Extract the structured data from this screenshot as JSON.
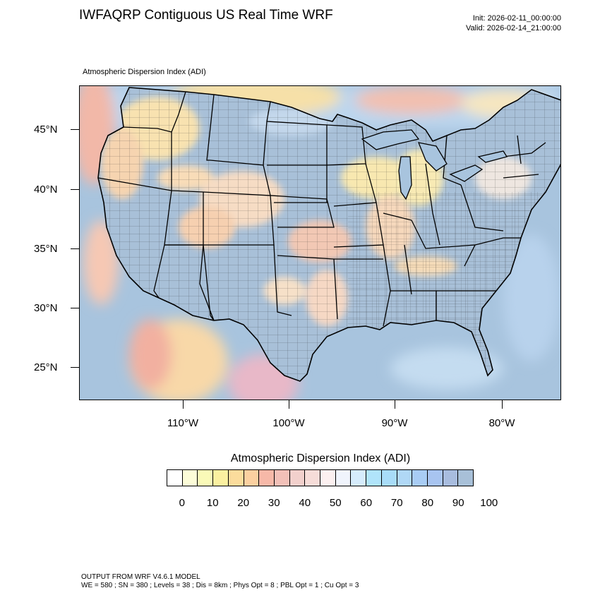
{
  "header": {
    "title": "IWFAQRP Contiguous US Real Time WRF",
    "init": "Init: 2026-02-11_00:00:00",
    "valid": "Valid: 2026-02-14_21:00:00"
  },
  "map": {
    "subtitle": "Atmospheric Dispersion Index   (ADI)",
    "lat_labels": [
      "45°N",
      "40°N",
      "35°N",
      "30°N",
      "25°N"
    ],
    "lon_labels": [
      "110°W",
      "100°W",
      "90°W",
      "80°W"
    ],
    "colors": {
      "ocean": "#a8c4de",
      "land_bg": "#b8d2ea",
      "adi_high": "#a8c4de",
      "adi_mid_blue": "#c9dcef",
      "adi_low_yellow": "#f8e6b0",
      "adi_low_orange": "#f6c9a0",
      "adi_low_red": "#f2b4a8",
      "boundaries": "#000000"
    }
  },
  "legend": {
    "title": "Atmospheric Dispersion Index  (ADI)",
    "colors": [
      "#ffffff",
      "#fcfcd8",
      "#fafab8",
      "#fbf0a0",
      "#fbdc9c",
      "#fbd0a0",
      "#f6b8a8",
      "#f2c0b8",
      "#f2d0cc",
      "#f6dcd8",
      "#fcf0f0",
      "#f0f4fc",
      "#d6ecfc",
      "#b0e4fa",
      "#a8dcf8",
      "#b0d8f6",
      "#a8ccf4",
      "#a8c4f0",
      "#a8bcde",
      "#a8c0d8"
    ],
    "ticks": [
      "0",
      "10",
      "20",
      "30",
      "40",
      "50",
      "60",
      "70",
      "80",
      "90",
      "100"
    ]
  },
  "footer": {
    "line1": "OUTPUT FROM WRF V4.6.1 MODEL",
    "line2": "WE = 580 ; SN = 380 ; Levels = 38 ; Dis = 8km ; Phys Opt = 8 ; PBL Opt = 1 ; Cu Opt = 3"
  }
}
